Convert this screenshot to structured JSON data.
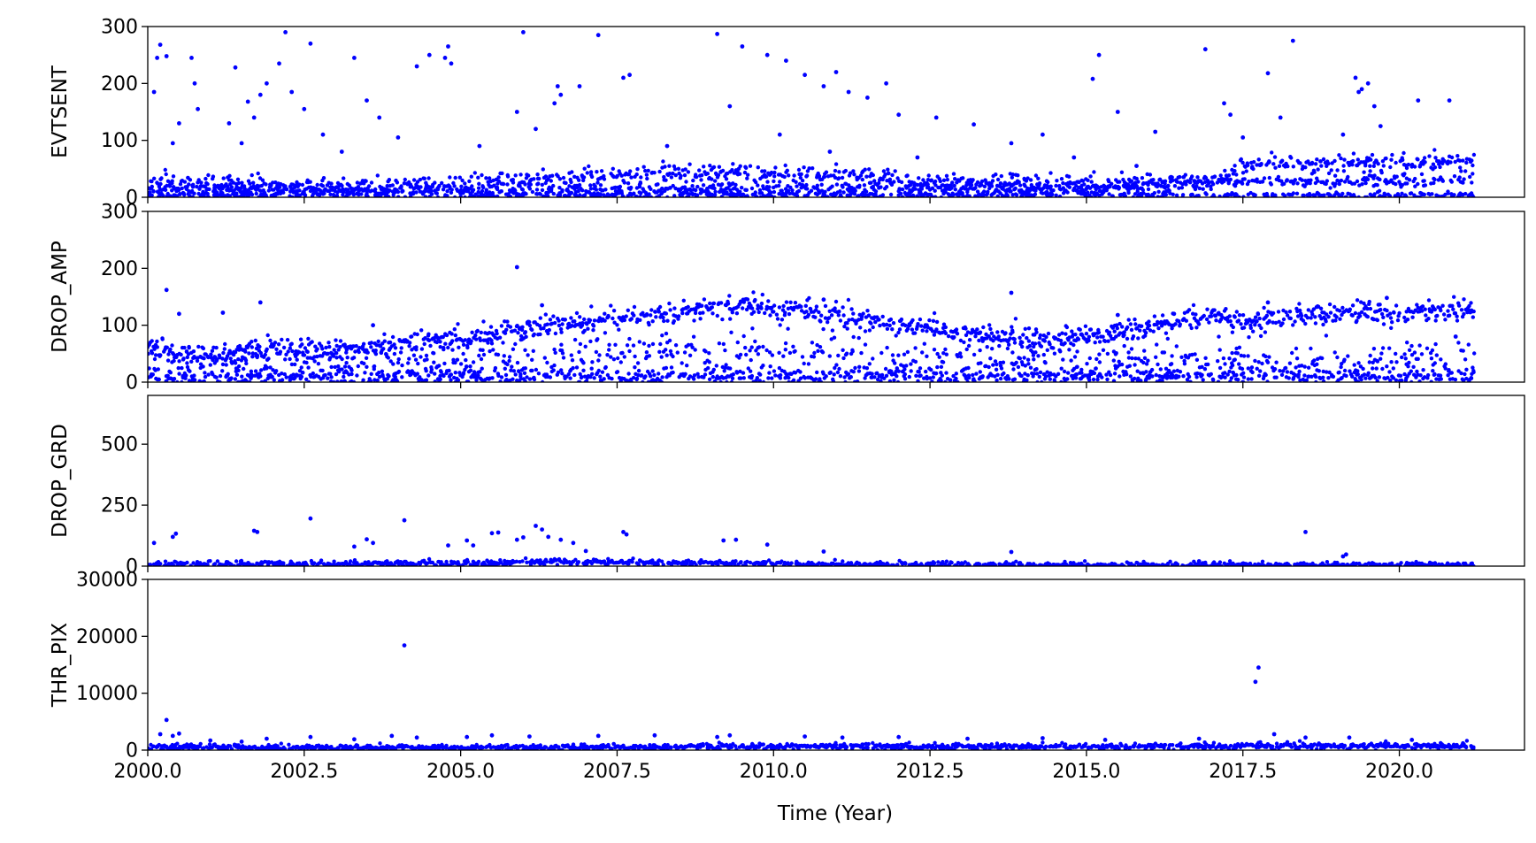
{
  "figure": {
    "xlabel": "Time (Year)",
    "xlim": [
      2000.0,
      2022.0
    ],
    "xticks": [
      2000.0,
      2002.5,
      2005.0,
      2007.5,
      2010.0,
      2012.5,
      2015.0,
      2017.5,
      2020.0
    ],
    "xtick_labels": [
      "2000.0",
      "2002.5",
      "2005.0",
      "2007.5",
      "2010.0",
      "2012.5",
      "2015.0",
      "2017.5",
      "2020.0"
    ],
    "marker_color": "#0000ff",
    "data_end_year": 2021.2
  },
  "chart_data": [
    {
      "type": "scatter",
      "ylabel": "EVTSENT",
      "ylim": [
        0,
        300
      ],
      "yticks": [
        0,
        100,
        200,
        300
      ],
      "grid": false,
      "trends": [
        {
          "x": [
            2000.0,
            2002.0,
            2005.0,
            2007.5,
            2010.0,
            2012.5,
            2015.0,
            2017.0,
            2017.5,
            2021.2
          ],
          "y": [
            25,
            20,
            22,
            38,
            42,
            28,
            22,
            28,
            58,
            62
          ],
          "spread": 8,
          "density": 0.55
        },
        {
          "x": [
            2000.0,
            2005.0,
            2010.0,
            2015.0,
            2017.5,
            2021.2
          ],
          "y": [
            14,
            12,
            16,
            14,
            30,
            30
          ],
          "spread": 5,
          "density": 0.45
        },
        {
          "x": [
            2000.0,
            2021.2
          ],
          "y": [
            4,
            4
          ],
          "spread": 3,
          "density": 0.35
        }
      ],
      "outliers": [
        [
          2000.1,
          185
        ],
        [
          2000.15,
          245
        ],
        [
          2000.2,
          268
        ],
        [
          2000.3,
          248
        ],
        [
          2000.4,
          95
        ],
        [
          2000.5,
          130
        ],
        [
          2000.7,
          245
        ],
        [
          2000.75,
          200
        ],
        [
          2000.8,
          155
        ],
        [
          2001.3,
          130
        ],
        [
          2001.4,
          228
        ],
        [
          2001.5,
          95
        ],
        [
          2001.6,
          168
        ],
        [
          2001.7,
          140
        ],
        [
          2001.8,
          180
        ],
        [
          2001.9,
          200
        ],
        [
          2002.1,
          235
        ],
        [
          2002.2,
          290
        ],
        [
          2002.3,
          185
        ],
        [
          2002.5,
          155
        ],
        [
          2002.6,
          270
        ],
        [
          2002.8,
          110
        ],
        [
          2003.1,
          80
        ],
        [
          2003.3,
          245
        ],
        [
          2003.5,
          170
        ],
        [
          2003.7,
          140
        ],
        [
          2004.0,
          105
        ],
        [
          2004.3,
          230
        ],
        [
          2004.5,
          250
        ],
        [
          2004.75,
          245
        ],
        [
          2004.8,
          265
        ],
        [
          2004.85,
          235
        ],
        [
          2005.3,
          90
        ],
        [
          2005.9,
          150
        ],
        [
          2006.0,
          290
        ],
        [
          2006.2,
          120
        ],
        [
          2006.5,
          165
        ],
        [
          2006.55,
          195
        ],
        [
          2006.6,
          180
        ],
        [
          2006.9,
          195
        ],
        [
          2007.2,
          285
        ],
        [
          2007.6,
          210
        ],
        [
          2007.7,
          215
        ],
        [
          2008.3,
          90
        ],
        [
          2009.1,
          287
        ],
        [
          2009.3,
          160
        ],
        [
          2009.5,
          265
        ],
        [
          2009.9,
          250
        ],
        [
          2010.1,
          110
        ],
        [
          2010.2,
          240
        ],
        [
          2010.5,
          215
        ],
        [
          2010.8,
          195
        ],
        [
          2010.9,
          80
        ],
        [
          2011.0,
          220
        ],
        [
          2011.2,
          185
        ],
        [
          2011.5,
          175
        ],
        [
          2011.8,
          200
        ],
        [
          2012.0,
          145
        ],
        [
          2012.3,
          70
        ],
        [
          2012.6,
          140
        ],
        [
          2013.2,
          128
        ],
        [
          2013.8,
          95
        ],
        [
          2014.3,
          110
        ],
        [
          2014.8,
          70
        ],
        [
          2015.1,
          208
        ],
        [
          2015.2,
          250
        ],
        [
          2015.5,
          150
        ],
        [
          2015.8,
          55
        ],
        [
          2016.1,
          115
        ],
        [
          2016.9,
          260
        ],
        [
          2017.2,
          165
        ],
        [
          2017.3,
          145
        ],
        [
          2017.5,
          105
        ],
        [
          2017.9,
          218
        ],
        [
          2018.1,
          140
        ],
        [
          2018.3,
          275
        ],
        [
          2019.1,
          110
        ],
        [
          2019.3,
          210
        ],
        [
          2019.35,
          185
        ],
        [
          2019.4,
          190
        ],
        [
          2019.5,
          200
        ],
        [
          2019.6,
          160
        ],
        [
          2019.7,
          125
        ],
        [
          2020.3,
          170
        ],
        [
          2020.8,
          170
        ]
      ]
    },
    {
      "type": "scatter",
      "ylabel": "DROP_AMP",
      "ylim": [
        0,
        300
      ],
      "yticks": [
        0,
        100,
        200,
        300
      ],
      "grid": false,
      "trends": [
        {
          "x": [
            2000.0,
            2001.0,
            2002.0,
            2003.5,
            2005.0,
            2006.5,
            2008.0,
            2009.5,
            2010.0,
            2011.5,
            2013.0,
            2014.5,
            2015.5,
            2017.0,
            2017.5,
            2019.0,
            2021.2
          ],
          "y": [
            60,
            48,
            58,
            58,
            78,
            102,
            118,
            135,
            130,
            108,
            85,
            75,
            88,
            118,
            105,
            122,
            125
          ],
          "spread": 9,
          "density": 0.7
        },
        {
          "x": [
            2000.0,
            2003.0,
            2006.0,
            2008.0,
            2010.0,
            2012.0,
            2015.0,
            2018.0,
            2021.2
          ],
          "y": [
            30,
            35,
            45,
            55,
            50,
            40,
            30,
            35,
            45
          ],
          "spread": 18,
          "density": 0.4
        },
        {
          "x": [
            2000.0,
            2021.2
          ],
          "y": [
            10,
            10
          ],
          "spread": 8,
          "density": 0.5
        }
      ],
      "outliers": [
        [
          2000.3,
          162
        ],
        [
          2000.5,
          120
        ],
        [
          2001.2,
          122
        ],
        [
          2001.8,
          140
        ],
        [
          2003.6,
          100
        ],
        [
          2005.9,
          202
        ],
        [
          2006.3,
          135
        ],
        [
          2008.6,
          130
        ],
        [
          2010.8,
          145
        ],
        [
          2013.8,
          157
        ],
        [
          2015.5,
          118
        ],
        [
          2016.4,
          120
        ],
        [
          2017.9,
          140
        ],
        [
          2019.8,
          148
        ],
        [
          2020.9,
          80
        ]
      ]
    },
    {
      "type": "scatter",
      "ylabel": "DROP_GRD",
      "ylim": [
        0,
        700
      ],
      "yticks": [
        0,
        250,
        500
      ],
      "grid": false,
      "trends": [
        {
          "x": [
            2000.0,
            2005.0,
            2006.5,
            2008.0,
            2010.0,
            2015.0,
            2021.2
          ],
          "y": [
            8,
            10,
            20,
            14,
            10,
            4,
            4
          ],
          "spread": 6,
          "density": 0.6
        }
      ],
      "outliers": [
        [
          2000.1,
          95
        ],
        [
          2000.4,
          120
        ],
        [
          2000.45,
          133
        ],
        [
          2001.7,
          145
        ],
        [
          2001.75,
          140
        ],
        [
          2002.6,
          195
        ],
        [
          2003.3,
          80
        ],
        [
          2003.5,
          110
        ],
        [
          2003.6,
          95
        ],
        [
          2004.1,
          188
        ],
        [
          2004.8,
          85
        ],
        [
          2005.1,
          105
        ],
        [
          2005.2,
          85
        ],
        [
          2005.5,
          135
        ],
        [
          2005.6,
          138
        ],
        [
          2005.9,
          108
        ],
        [
          2006.0,
          118
        ],
        [
          2006.2,
          165
        ],
        [
          2006.3,
          150
        ],
        [
          2006.4,
          120
        ],
        [
          2006.6,
          108
        ],
        [
          2006.8,
          95
        ],
        [
          2007.0,
          62
        ],
        [
          2007.6,
          140
        ],
        [
          2007.65,
          130
        ],
        [
          2009.2,
          105
        ],
        [
          2009.4,
          108
        ],
        [
          2009.9,
          88
        ],
        [
          2010.8,
          60
        ],
        [
          2013.8,
          58
        ],
        [
          2016.8,
          20
        ],
        [
          2018.5,
          140
        ],
        [
          2019.1,
          40
        ],
        [
          2019.15,
          48
        ]
      ]
    },
    {
      "type": "scatter",
      "ylabel": "THR_PIX",
      "ylim": [
        0,
        30000
      ],
      "yticks": [
        0,
        10000,
        20000,
        30000
      ],
      "grid": false,
      "trends": [
        {
          "x": [
            2000.0,
            2005.0,
            2010.0,
            2015.0,
            2021.2
          ],
          "y": [
            500,
            450,
            650,
            650,
            750
          ],
          "spread": 250,
          "density": 0.7
        }
      ],
      "outliers": [
        [
          2000.2,
          2800
        ],
        [
          2000.3,
          5300
        ],
        [
          2000.4,
          2500
        ],
        [
          2000.5,
          2900
        ],
        [
          2001.0,
          1700
        ],
        [
          2001.5,
          1500
        ],
        [
          2001.9,
          2000
        ],
        [
          2002.6,
          2300
        ],
        [
          2003.3,
          1900
        ],
        [
          2003.9,
          2500
        ],
        [
          2004.1,
          18400
        ],
        [
          2004.3,
          2200
        ],
        [
          2005.1,
          2300
        ],
        [
          2005.5,
          2600
        ],
        [
          2006.1,
          2400
        ],
        [
          2007.2,
          2500
        ],
        [
          2008.1,
          2600
        ],
        [
          2009.1,
          2300
        ],
        [
          2009.3,
          2600
        ],
        [
          2010.5,
          2400
        ],
        [
          2011.1,
          2200
        ],
        [
          2012.0,
          2300
        ],
        [
          2013.1,
          2000
        ],
        [
          2014.3,
          2100
        ],
        [
          2015.3,
          1800
        ],
        [
          2016.8,
          2000
        ],
        [
          2017.7,
          12000
        ],
        [
          2017.75,
          14500
        ],
        [
          2018.0,
          2800
        ],
        [
          2018.5,
          2200
        ],
        [
          2019.2,
          2200
        ],
        [
          2020.2,
          1800
        ]
      ]
    }
  ]
}
